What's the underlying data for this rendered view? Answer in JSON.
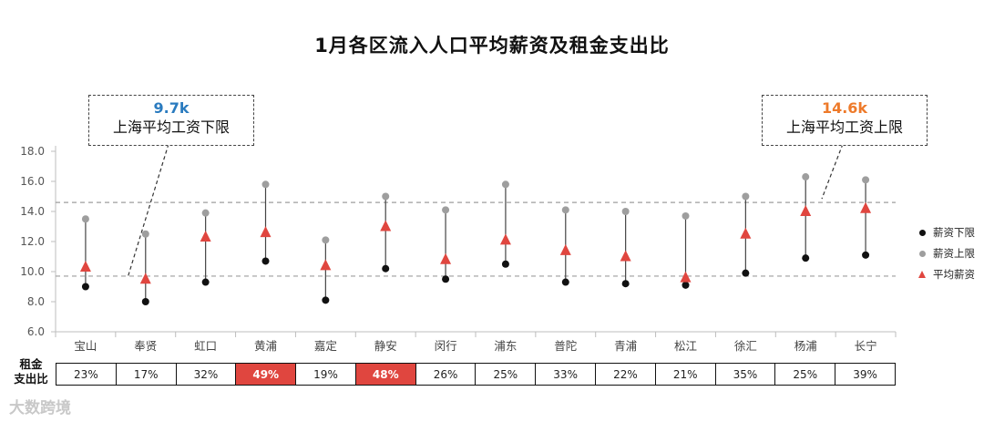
{
  "title": "1月各区流入人口平均薪资及租金支出比",
  "chart_data": {
    "type": "scatter",
    "categories": [
      "宝山",
      "奉贤",
      "虹口",
      "黄浦",
      "嘉定",
      "静安",
      "闵行",
      "浦东",
      "普陀",
      "青浦",
      "松江",
      "徐汇",
      "杨浦",
      "长宁"
    ],
    "series": [
      {
        "name": "薪资下限",
        "color": "#111111",
        "values": [
          9.0,
          8.0,
          9.3,
          10.7,
          8.1,
          10.2,
          9.5,
          10.5,
          9.3,
          9.2,
          9.1,
          9.9,
          10.9,
          11.1
        ]
      },
      {
        "name": "薪资上限",
        "color": "#9e9e9e",
        "values": [
          13.5,
          12.5,
          13.9,
          15.8,
          12.1,
          15.0,
          14.1,
          15.8,
          14.1,
          14.0,
          13.7,
          15.0,
          16.3,
          16.1
        ]
      },
      {
        "name": "平均薪资",
        "color": "#e0463f",
        "values": [
          10.3,
          9.5,
          12.3,
          12.6,
          10.4,
          13.0,
          10.8,
          12.1,
          11.4,
          11.0,
          9.6,
          12.5,
          14.0,
          14.2
        ]
      }
    ],
    "yticks": [
      "6.0",
      "8.0",
      "10.0",
      "12.0",
      "14.0",
      "16.0",
      "18.0"
    ],
    "ylim": [
      6,
      18
    ],
    "reference_lines": [
      {
        "value": 9.7,
        "label": "上海平均工资下限",
        "value_label": "9.7k",
        "color": "#2a7bbf"
      },
      {
        "value": 14.6,
        "label": "上海平均工资上限",
        "value_label": "14.6k",
        "color": "#ee7a2a"
      }
    ],
    "legend_position": "right",
    "grid": false
  },
  "ratio_row": {
    "label_line1": "租金",
    "label_line2": "支出比",
    "values": [
      "23%",
      "17%",
      "32%",
      "49%",
      "19%",
      "48%",
      "26%",
      "25%",
      "33%",
      "22%",
      "21%",
      "35%",
      "25%",
      "39%"
    ],
    "highlighted": [
      3,
      5
    ],
    "highlight_color": "#e0463f"
  },
  "brand": "大数跨境"
}
